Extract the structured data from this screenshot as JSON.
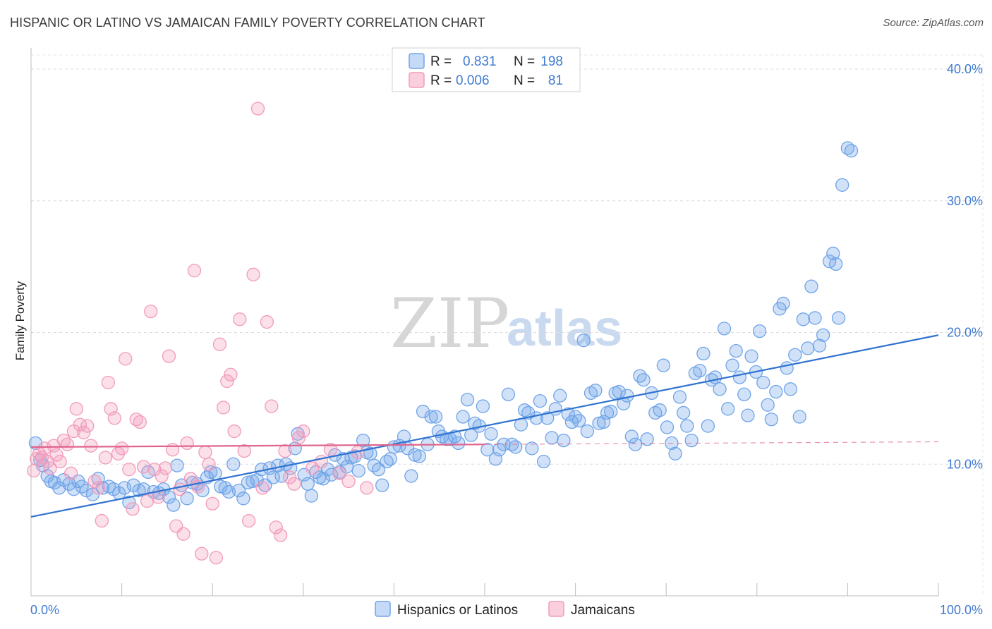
{
  "title": "HISPANIC OR LATINO VS JAMAICAN FAMILY POVERTY CORRELATION CHART",
  "source": "Source: ZipAtlas.com",
  "watermark": {
    "zip": "ZIP",
    "atlas": "atlas"
  },
  "legend": {
    "rows": [
      {
        "r_label": "R =",
        "r_value": "0.831",
        "n_label": "N =",
        "n_value": "198",
        "color": "#6fa4e8"
      },
      {
        "r_label": "R =",
        "r_value": "0.006",
        "n_label": "N =",
        "n_value": "81",
        "color": "#f29bbb"
      }
    ]
  },
  "chart_data": {
    "type": "scatter",
    "xlabel": "",
    "ylabel": "Family Poverty",
    "xlim": [
      0,
      100
    ],
    "ylim": [
      0,
      40
    ],
    "x_tick_labels": [
      "0.0%",
      "100.0%"
    ],
    "y_ticks": [
      10,
      20,
      30,
      40
    ],
    "y_tick_labels": [
      "10.0%",
      "20.0%",
      "30.0%",
      "40.0%"
    ],
    "grid": true,
    "series": [
      {
        "name": "Hispanics or Latinos",
        "color": "#6fa4e8",
        "line_color": "#2f72d0",
        "trend": {
          "x0": 0,
          "y0": 6.0,
          "x1": 100,
          "y1": 19.8,
          "dashed_from": null
        },
        "points": [
          [
            0.5,
            11.6
          ],
          [
            1,
            10.3
          ],
          [
            1.3,
            9.9
          ],
          [
            1.8,
            9.1
          ],
          [
            2.2,
            8.7
          ],
          [
            2.6,
            8.6
          ],
          [
            3.1,
            8.2
          ],
          [
            3.6,
            8.8
          ],
          [
            4.2,
            8.5
          ],
          [
            4.7,
            8.1
          ],
          [
            5.2,
            8.7
          ],
          [
            5.6,
            8.3
          ],
          [
            6.1,
            8.0
          ],
          [
            6.8,
            7.7
          ],
          [
            7.4,
            8.9
          ],
          [
            7.9,
            8.2
          ],
          [
            8.6,
            8.3
          ],
          [
            9.1,
            8.1
          ],
          [
            9.7,
            7.8
          ],
          [
            10.3,
            8.2
          ],
          [
            10.8,
            7.1
          ],
          [
            11.3,
            8.4
          ],
          [
            11.9,
            8.0
          ],
          [
            12.4,
            8.1
          ],
          [
            12.9,
            9.4
          ],
          [
            13.5,
            7.9
          ],
          [
            14.1,
            7.8
          ],
          [
            14.6,
            8.1
          ],
          [
            15.2,
            7.5
          ],
          [
            15.7,
            6.9
          ],
          [
            16.1,
            9.9
          ],
          [
            16.6,
            8.4
          ],
          [
            17.2,
            7.4
          ],
          [
            17.8,
            8.6
          ],
          [
            18.3,
            8.5
          ],
          [
            18.9,
            8.0
          ],
          [
            19.4,
            9.0
          ],
          [
            19.8,
            9.4
          ],
          [
            20.3,
            9.3
          ],
          [
            20.9,
            8.3
          ],
          [
            21.4,
            8.2
          ],
          [
            21.8,
            7.9
          ],
          [
            22.3,
            10.0
          ],
          [
            22.9,
            8.0
          ],
          [
            23.4,
            7.4
          ],
          [
            23.9,
            8.6
          ],
          [
            24.4,
            8.7
          ],
          [
            24.9,
            8.8
          ],
          [
            25.4,
            9.6
          ],
          [
            25.8,
            8.4
          ],
          [
            26.3,
            9.7
          ],
          [
            26.7,
            9.0
          ],
          [
            27.2,
            9.9
          ],
          [
            27.6,
            9.1
          ],
          [
            28.1,
            10.0
          ],
          [
            28.6,
            9.7
          ],
          [
            29.1,
            11.2
          ],
          [
            29.4,
            12.3
          ],
          [
            30.1,
            9.2
          ],
          [
            30.5,
            8.5
          ],
          [
            30.9,
            7.6
          ],
          [
            31.4,
            9.4
          ],
          [
            31.8,
            9.0
          ],
          [
            32.2,
            8.9
          ],
          [
            32.7,
            9.6
          ],
          [
            33.1,
            9.2
          ],
          [
            33.5,
            10.7
          ],
          [
            34.0,
            9.4
          ],
          [
            34.4,
            10.4
          ],
          [
            34.8,
            9.8
          ],
          [
            35.3,
            10.5
          ],
          [
            35.7,
            10.6
          ],
          [
            36.1,
            9.5
          ],
          [
            36.6,
            11.8
          ],
          [
            37.0,
            10.9
          ],
          [
            37.4,
            10.8
          ],
          [
            37.8,
            9.9
          ],
          [
            38.3,
            9.6
          ],
          [
            38.7,
            8.4
          ],
          [
            39.2,
            10.2
          ],
          [
            39.6,
            10.4
          ],
          [
            40.0,
            11.3
          ],
          [
            40.6,
            11.4
          ],
          [
            41.1,
            12.1
          ],
          [
            41.5,
            11.2
          ],
          [
            41.9,
            9.1
          ],
          [
            42.3,
            10.7
          ],
          [
            42.8,
            10.6
          ],
          [
            43.2,
            14.0
          ],
          [
            43.7,
            11.5
          ],
          [
            44.1,
            13.6
          ],
          [
            44.6,
            13.6
          ],
          [
            44.9,
            12.5
          ],
          [
            45.3,
            12.1
          ],
          [
            45.8,
            11.9
          ],
          [
            46.2,
            11.9
          ],
          [
            46.7,
            12.1
          ],
          [
            47.1,
            11.6
          ],
          [
            47.6,
            13.6
          ],
          [
            48.1,
            14.9
          ],
          [
            48.5,
            12.2
          ],
          [
            48.9,
            13.1
          ],
          [
            49.4,
            12.9
          ],
          [
            49.8,
            14.4
          ],
          [
            50.3,
            11.1
          ],
          [
            50.7,
            12.3
          ],
          [
            51.2,
            10.4
          ],
          [
            51.6,
            11.1
          ],
          [
            52.1,
            11.5
          ],
          [
            52.6,
            15.3
          ],
          [
            53.0,
            11.5
          ],
          [
            53.4,
            11.3
          ],
          [
            54.0,
            13.0
          ],
          [
            54.4,
            14.1
          ],
          [
            54.8,
            13.9
          ],
          [
            55.2,
            11.2
          ],
          [
            55.7,
            13.5
          ],
          [
            56.1,
            14.8
          ],
          [
            56.5,
            10.2
          ],
          [
            56.9,
            13.5
          ],
          [
            57.4,
            12.0
          ],
          [
            57.8,
            14.2
          ],
          [
            58.3,
            15.2
          ],
          [
            58.7,
            11.8
          ],
          [
            59.2,
            13.8
          ],
          [
            59.6,
            13.2
          ],
          [
            60.0,
            13.6
          ],
          [
            60.4,
            13.3
          ],
          [
            60.9,
            19.4
          ],
          [
            61.3,
            12.5
          ],
          [
            61.7,
            15.4
          ],
          [
            62.2,
            15.6
          ],
          [
            62.6,
            13.1
          ],
          [
            63.1,
            13.2
          ],
          [
            63.5,
            13.9
          ],
          [
            63.9,
            14.0
          ],
          [
            64.4,
            15.4
          ],
          [
            64.8,
            15.5
          ],
          [
            65.3,
            14.6
          ],
          [
            65.7,
            15.2
          ],
          [
            66.2,
            12.1
          ],
          [
            66.6,
            11.5
          ],
          [
            67.1,
            16.7
          ],
          [
            67.5,
            16.4
          ],
          [
            67.9,
            11.9
          ],
          [
            68.4,
            15.4
          ],
          [
            68.8,
            13.9
          ],
          [
            69.3,
            14.1
          ],
          [
            69.7,
            17.5
          ],
          [
            70.1,
            12.8
          ],
          [
            70.6,
            11.6
          ],
          [
            71.0,
            10.8
          ],
          [
            71.5,
            15.1
          ],
          [
            71.9,
            13.9
          ],
          [
            72.3,
            12.9
          ],
          [
            72.8,
            11.8
          ],
          [
            73.2,
            16.9
          ],
          [
            73.7,
            17.1
          ],
          [
            74.1,
            18.4
          ],
          [
            74.6,
            12.9
          ],
          [
            75.0,
            16.4
          ],
          [
            75.4,
            16.6
          ],
          [
            75.9,
            15.7
          ],
          [
            76.4,
            20.3
          ],
          [
            76.8,
            14.2
          ],
          [
            77.3,
            17.5
          ],
          [
            77.7,
            18.6
          ],
          [
            78.1,
            16.6
          ],
          [
            78.6,
            15.3
          ],
          [
            79.0,
            13.7
          ],
          [
            79.4,
            18.2
          ],
          [
            79.9,
            17.0
          ],
          [
            80.3,
            20.1
          ],
          [
            80.7,
            16.2
          ],
          [
            81.2,
            14.5
          ],
          [
            81.6,
            13.4
          ],
          [
            82.1,
            15.5
          ],
          [
            82.5,
            21.8
          ],
          [
            82.9,
            22.2
          ],
          [
            83.3,
            17.3
          ],
          [
            83.7,
            15.7
          ],
          [
            84.2,
            18.3
          ],
          [
            84.7,
            13.6
          ],
          [
            85.1,
            21.0
          ],
          [
            85.6,
            18.8
          ],
          [
            86.0,
            23.5
          ],
          [
            86.4,
            21.1
          ],
          [
            86.9,
            19.0
          ],
          [
            87.3,
            19.8
          ],
          [
            88.0,
            25.4
          ],
          [
            88.4,
            26.0
          ],
          [
            88.7,
            25.2
          ],
          [
            89.0,
            21.1
          ],
          [
            89.4,
            31.2
          ],
          [
            90.0,
            34.0
          ],
          [
            90.4,
            33.8
          ]
        ]
      },
      {
        "name": "Jamaicans",
        "color": "#f29bbb",
        "line_color": "#e0658d",
        "trend": {
          "x0": 0,
          "y0": 11.3,
          "x1": 100,
          "y1": 11.7,
          "dashed_from": 50
        },
        "points": [
          [
            0.3,
            9.5
          ],
          [
            0.6,
            10.4
          ],
          [
            0.9,
            10.8
          ],
          [
            1.2,
            10.5
          ],
          [
            1.5,
            11.2
          ],
          [
            1.8,
            10.2
          ],
          [
            2.1,
            9.7
          ],
          [
            2.5,
            11.4
          ],
          [
            2.8,
            10.7
          ],
          [
            3.2,
            10.2
          ],
          [
            3.6,
            11.8
          ],
          [
            4.0,
            11.5
          ],
          [
            4.4,
            9.3
          ],
          [
            4.7,
            12.5
          ],
          [
            5.0,
            14.2
          ],
          [
            5.4,
            13.0
          ],
          [
            5.8,
            12.4
          ],
          [
            6.2,
            12.9
          ],
          [
            6.6,
            11.4
          ],
          [
            7.0,
            8.7
          ],
          [
            7.4,
            8.2
          ],
          [
            7.8,
            5.7
          ],
          [
            8.2,
            10.5
          ],
          [
            8.5,
            16.2
          ],
          [
            8.8,
            14.2
          ],
          [
            9.2,
            13.5
          ],
          [
            9.6,
            10.8
          ],
          [
            10.0,
            11.2
          ],
          [
            10.4,
            18.0
          ],
          [
            10.8,
            9.6
          ],
          [
            11.2,
            6.6
          ],
          [
            11.6,
            13.4
          ],
          [
            12.0,
            13.2
          ],
          [
            12.4,
            9.8
          ],
          [
            12.8,
            7.2
          ],
          [
            13.2,
            21.6
          ],
          [
            13.6,
            9.6
          ],
          [
            14.0,
            7.5
          ],
          [
            14.4,
            9.1
          ],
          [
            14.8,
            9.7
          ],
          [
            15.2,
            18.2
          ],
          [
            15.6,
            11.1
          ],
          [
            16.0,
            5.3
          ],
          [
            16.4,
            8.1
          ],
          [
            16.8,
            4.7
          ],
          [
            17.2,
            11.6
          ],
          [
            17.6,
            8.9
          ],
          [
            18.0,
            24.7
          ],
          [
            18.4,
            8.3
          ],
          [
            18.8,
            3.2
          ],
          [
            19.2,
            10.9
          ],
          [
            19.6,
            10.0
          ],
          [
            20.0,
            7.0
          ],
          [
            20.4,
            2.9
          ],
          [
            20.8,
            19.1
          ],
          [
            21.2,
            14.3
          ],
          [
            21.6,
            16.3
          ],
          [
            22.0,
            16.8
          ],
          [
            22.4,
            12.5
          ],
          [
            23.0,
            21.0
          ],
          [
            23.5,
            11.0
          ],
          [
            24.0,
            5.7
          ],
          [
            24.5,
            24.4
          ],
          [
            25.0,
            37.0
          ],
          [
            25.5,
            8.2
          ],
          [
            26.0,
            20.8
          ],
          [
            26.5,
            14.4
          ],
          [
            27.0,
            5.2
          ],
          [
            27.5,
            4.6
          ],
          [
            28.0,
            11.0
          ],
          [
            28.5,
            9.0
          ],
          [
            29.0,
            8.5
          ],
          [
            29.5,
            12.0
          ],
          [
            30.0,
            12.5
          ],
          [
            31.0,
            9.7
          ],
          [
            32.0,
            10.2
          ],
          [
            33.0,
            11.1
          ],
          [
            34.0,
            9.3
          ],
          [
            35.0,
            8.7
          ],
          [
            36.0,
            10.9
          ],
          [
            37.0,
            8.2
          ]
        ]
      }
    ],
    "legend_position": "top-center",
    "bottom_legend": [
      "Hispanics or Latinos",
      "Jamaicans"
    ]
  }
}
